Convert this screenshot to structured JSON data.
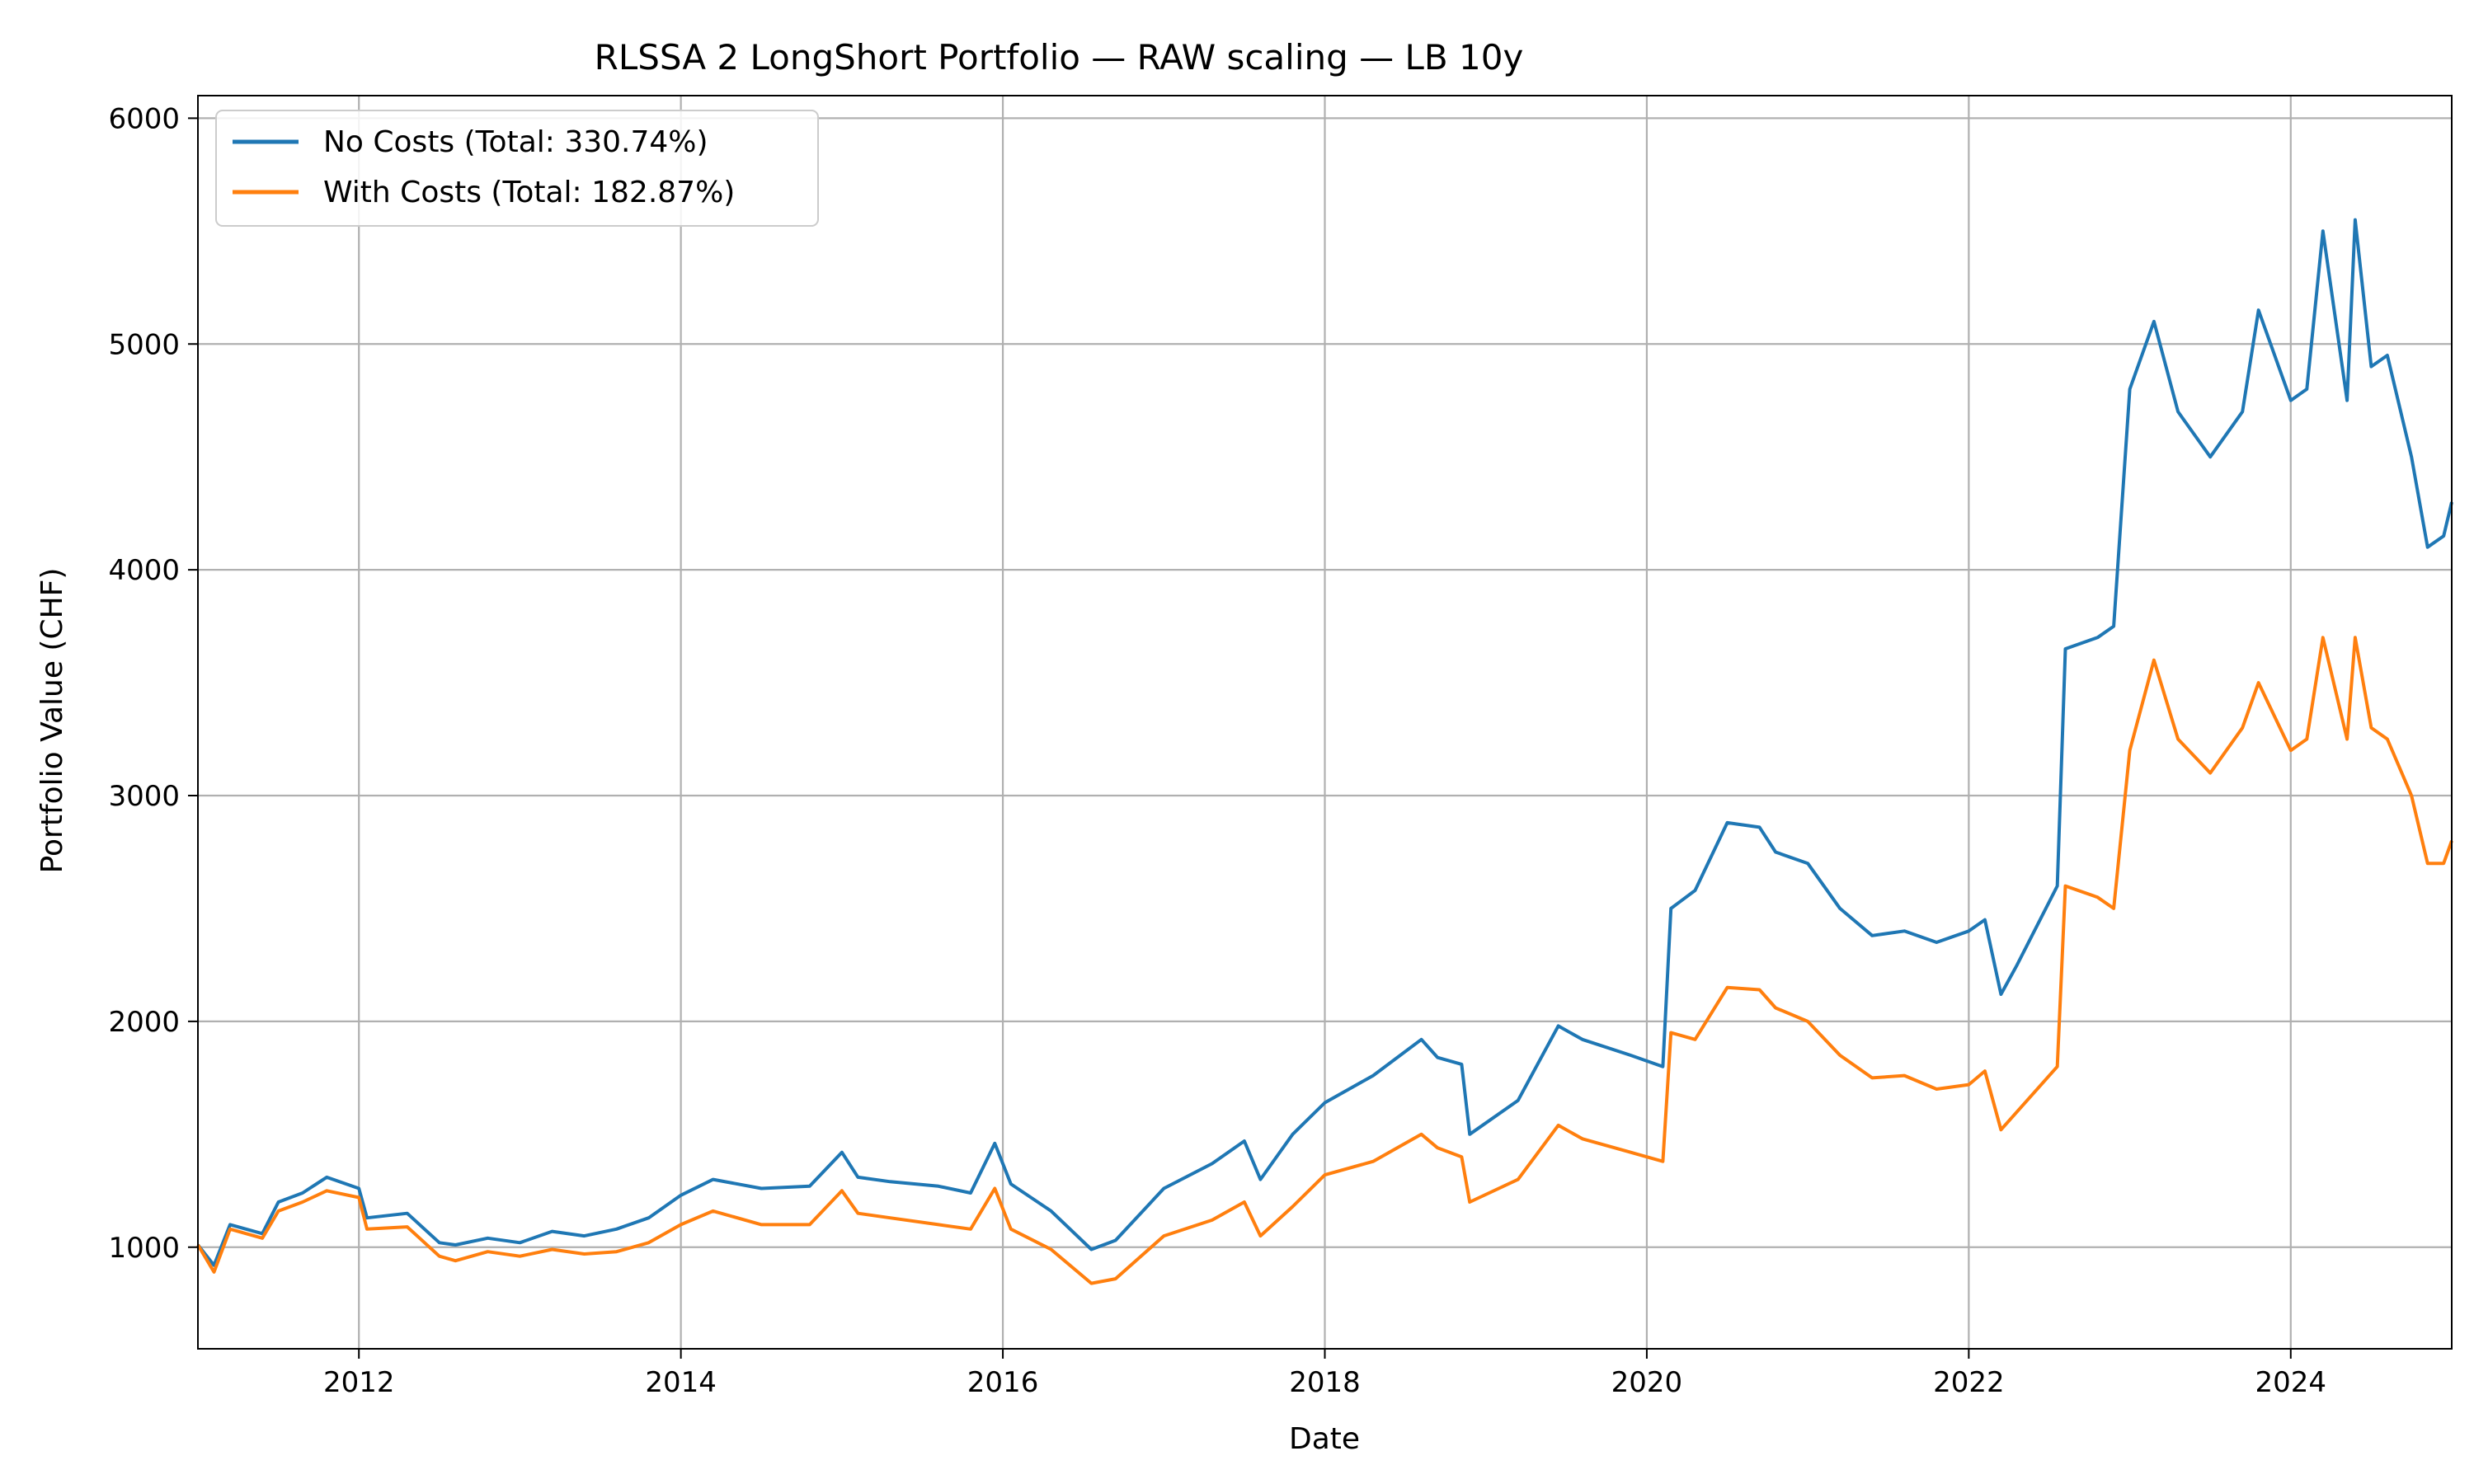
{
  "chart_data": {
    "type": "line",
    "title": "RLSSA 2 LongShort Portfolio — RAW scaling — LB 10y",
    "xlabel": "Date",
    "ylabel": "Portfolio Value (CHF)",
    "xlim": [
      2011.0,
      2025.0
    ],
    "ylim": [
      550,
      6100
    ],
    "xticks": [
      2012,
      2014,
      2016,
      2018,
      2020,
      2022,
      2024
    ],
    "xtick_labels": [
      "2012",
      "2014",
      "2016",
      "2018",
      "2020",
      "2022",
      "2024"
    ],
    "yticks": [
      1000,
      2000,
      3000,
      4000,
      5000,
      6000
    ],
    "ytick_labels": [
      "1000",
      "2000",
      "3000",
      "4000",
      "5000",
      "6000"
    ],
    "grid": true,
    "legend_position": "top-left",
    "series": [
      {
        "name": "No Costs (Total: 330.74%)",
        "color": "#1f77b4",
        "x": [
          2011.0,
          2011.1,
          2011.2,
          2011.4,
          2011.5,
          2011.65,
          2011.8,
          2012.0,
          2012.05,
          2012.3,
          2012.5,
          2012.6,
          2012.8,
          2013.0,
          2013.2,
          2013.4,
          2013.6,
          2013.8,
          2014.0,
          2014.2,
          2014.5,
          2014.8,
          2015.0,
          2015.1,
          2015.3,
          2015.6,
          2015.8,
          2015.95,
          2016.05,
          2016.3,
          2016.55,
          2016.7,
          2017.0,
          2017.3,
          2017.5,
          2017.6,
          2017.8,
          2018.0,
          2018.3,
          2018.6,
          2018.7,
          2018.85,
          2018.9,
          2019.2,
          2019.45,
          2019.6,
          2019.9,
          2020.1,
          2020.15,
          2020.3,
          2020.5,
          2020.7,
          2020.8,
          2021.0,
          2021.2,
          2021.4,
          2021.6,
          2021.8,
          2022.0,
          2022.1,
          2022.2,
          2022.3,
          2022.55,
          2022.6,
          2022.8,
          2022.9,
          2023.0,
          2023.15,
          2023.3,
          2023.5,
          2023.7,
          2023.8,
          2024.0,
          2024.1,
          2024.2,
          2024.35,
          2024.4,
          2024.5,
          2024.6,
          2024.75,
          2024.85,
          2024.95,
          2025.0
        ],
        "values": [
          1010,
          920,
          1100,
          1060,
          1200,
          1240,
          1310,
          1260,
          1130,
          1150,
          1020,
          1010,
          1040,
          1020,
          1070,
          1050,
          1080,
          1130,
          1230,
          1300,
          1260,
          1270,
          1420,
          1310,
          1290,
          1270,
          1240,
          1460,
          1280,
          1160,
          990,
          1030,
          1260,
          1370,
          1470,
          1300,
          1500,
          1640,
          1760,
          1920,
          1840,
          1810,
          1500,
          1650,
          1980,
          1920,
          1850,
          1800,
          2500,
          2580,
          2880,
          2860,
          2750,
          2700,
          2500,
          2380,
          2400,
          2350,
          2400,
          2450,
          2120,
          2250,
          2600,
          3650,
          3700,
          3750,
          4800,
          5100,
          4700,
          4500,
          4700,
          5150,
          4750,
          4800,
          5500,
          4750,
          5550,
          4900,
          4950,
          4500,
          4100,
          4150,
          4300
        ]
      },
      {
        "name": "With Costs (Total: 182.87%)",
        "color": "#ff7f0e",
        "x": [
          2011.0,
          2011.1,
          2011.2,
          2011.4,
          2011.5,
          2011.65,
          2011.8,
          2012.0,
          2012.05,
          2012.3,
          2012.5,
          2012.6,
          2012.8,
          2013.0,
          2013.2,
          2013.4,
          2013.6,
          2013.8,
          2014.0,
          2014.2,
          2014.5,
          2014.8,
          2015.0,
          2015.1,
          2015.3,
          2015.6,
          2015.8,
          2015.95,
          2016.05,
          2016.3,
          2016.55,
          2016.7,
          2017.0,
          2017.3,
          2017.5,
          2017.6,
          2017.8,
          2018.0,
          2018.3,
          2018.6,
          2018.7,
          2018.85,
          2018.9,
          2019.2,
          2019.45,
          2019.6,
          2019.9,
          2020.1,
          2020.15,
          2020.3,
          2020.5,
          2020.7,
          2020.8,
          2021.0,
          2021.2,
          2021.4,
          2021.6,
          2021.8,
          2022.0,
          2022.1,
          2022.2,
          2022.3,
          2022.55,
          2022.6,
          2022.8,
          2022.9,
          2023.0,
          2023.15,
          2023.3,
          2023.5,
          2023.7,
          2023.8,
          2024.0,
          2024.1,
          2024.2,
          2024.35,
          2024.4,
          2024.5,
          2024.6,
          2024.75,
          2024.85,
          2024.95,
          2025.0
        ],
        "values": [
          1010,
          890,
          1080,
          1040,
          1160,
          1200,
          1250,
          1220,
          1080,
          1090,
          960,
          940,
          980,
          960,
          990,
          970,
          980,
          1020,
          1100,
          1160,
          1100,
          1100,
          1250,
          1150,
          1130,
          1100,
          1080,
          1260,
          1080,
          990,
          840,
          860,
          1050,
          1120,
          1200,
          1050,
          1180,
          1320,
          1380,
          1500,
          1440,
          1400,
          1200,
          1300,
          1540,
          1480,
          1420,
          1380,
          1950,
          1920,
          2150,
          2140,
          2060,
          2000,
          1850,
          1750,
          1760,
          1700,
          1720,
          1780,
          1520,
          1600,
          1800,
          2600,
          2550,
          2500,
          3200,
          3600,
          3250,
          3100,
          3300,
          3500,
          3200,
          3250,
          3700,
          3250,
          3700,
          3300,
          3250,
          3000,
          2700,
          2700,
          2800
        ]
      }
    ]
  }
}
